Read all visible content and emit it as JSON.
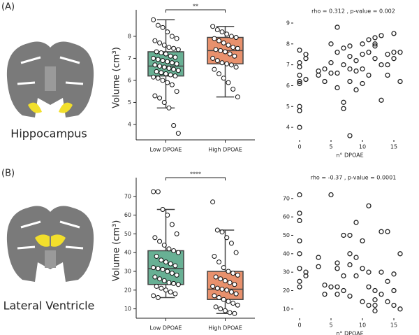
{
  "panel_labels": [
    "(A)",
    "(B)"
  ],
  "region_labels": [
    "Hippocampus",
    "Lateral Ventricle"
  ],
  "chart_data": [
    {
      "type": "box",
      "ylabel": "Volume (cm³)",
      "annotation": "**",
      "categories": [
        "Low DPOAE",
        "High DPOAE"
      ],
      "colors": [
        "#68b094",
        "#e8916d"
      ],
      "ylim": [
        3.3,
        8.95
      ],
      "yticks": [
        4,
        5,
        6,
        7,
        8
      ],
      "boxes": [
        {
          "whislo": 4.75,
          "q1": 6.2,
          "med": 6.65,
          "q3": 7.3,
          "whishi": 8.75,
          "points": [
            8.75,
            8.5,
            8.4,
            8.2,
            8.0,
            7.9,
            7.8,
            7.7,
            7.6,
            7.5,
            7.45,
            7.4,
            7.3,
            7.25,
            7.2,
            7.1,
            7.05,
            7.0,
            6.95,
            6.9,
            6.85,
            6.8,
            6.75,
            6.7,
            6.65,
            6.6,
            6.55,
            6.5,
            6.45,
            6.4,
            6.35,
            6.3,
            6.25,
            6.2,
            6.15,
            6.1,
            6.0,
            5.9,
            5.8,
            5.5,
            5.3,
            5.2,
            5.0,
            4.75,
            3.95,
            3.6
          ]
        },
        {
          "whislo": 5.25,
          "q1": 6.75,
          "med": 7.35,
          "q3": 7.95,
          "whishi": 8.45,
          "points": [
            8.45,
            8.3,
            8.2,
            8.1,
            8.0,
            7.95,
            7.9,
            7.8,
            7.7,
            7.6,
            7.5,
            7.45,
            7.4,
            7.35,
            7.3,
            7.2,
            7.1,
            7.0,
            6.9,
            6.8,
            6.75,
            6.7,
            6.6,
            6.5,
            6.3,
            6.1,
            5.9,
            5.6,
            5.25
          ]
        }
      ]
    },
    {
      "type": "scatter",
      "title": "rho = 0.312 , p-value = 0.002",
      "xlabel": "n° DPOAE",
      "xlim": [
        -1,
        17
      ],
      "xticks": [
        0,
        5,
        10,
        15
      ],
      "ylim": [
        3.4,
        9.1
      ],
      "yticks": [
        4,
        5,
        6,
        7,
        8,
        9
      ],
      "x": [
        0,
        0,
        0,
        0,
        0,
        0,
        0,
        0,
        0,
        1,
        1,
        1,
        3,
        3,
        4,
        4,
        5,
        5,
        5,
        6,
        6,
        6,
        6,
        7,
        7,
        7,
        7,
        8,
        8,
        8,
        8,
        8,
        9,
        9,
        9,
        10,
        10,
        10,
        10,
        11,
        11,
        11,
        12,
        12,
        12,
        12,
        13,
        13,
        13,
        14,
        14,
        14,
        15,
        15,
        15,
        16,
        16
      ],
      "y": [
        7.7,
        7.1,
        6.9,
        6.5,
        6.2,
        6.1,
        5.0,
        4.8,
        4.0,
        7.3,
        7.5,
        6.3,
        6.7,
        6.5,
        6.8,
        6.2,
        8.0,
        7.1,
        6.6,
        8.8,
        7.6,
        6.6,
        5.9,
        7.8,
        7.0,
        5.2,
        4.9,
        7.9,
        7.4,
        6.8,
        6.2,
        3.6,
        7.2,
        6.7,
        5.8,
        8.0,
        7.5,
        6.8,
        6.1,
        8.2,
        7.6,
        6.5,
        8.3,
        8.0,
        7.9,
        7.3,
        8.4,
        7.0,
        5.3,
        7.5,
        7.0,
        6.5,
        8.5,
        7.6,
        7.3,
        7.6,
        6.2
      ]
    },
    {
      "type": "box",
      "ylabel": "Volume (cm³)",
      "annotation": "****",
      "categories": [
        "Low DPOAE",
        "High DPOAE"
      ],
      "colors": [
        "#68b094",
        "#e8916d"
      ],
      "ylim": [
        5,
        77
      ],
      "yticks": [
        10,
        20,
        30,
        40,
        50,
        60,
        70
      ],
      "boxes": [
        {
          "whislo": 16,
          "q1": 23,
          "med": 31.5,
          "q3": 41,
          "whishi": 63,
          "points": [
            72.5,
            72.5,
            63,
            60,
            55,
            50,
            48,
            46,
            44,
            42,
            41,
            40,
            38,
            36,
            35,
            34,
            33,
            32,
            31.5,
            31,
            30,
            29,
            28,
            27,
            26,
            25,
            24,
            23.5,
            23,
            22,
            21,
            20,
            19,
            18,
            17,
            16
          ]
        },
        {
          "whislo": 7.5,
          "q1": 15,
          "med": 20.5,
          "q3": 30,
          "whishi": 52,
          "points": [
            67,
            52,
            51,
            48,
            45,
            40,
            38,
            35,
            32,
            30,
            29,
            28,
            27,
            26,
            25,
            24,
            23,
            22,
            21,
            20.5,
            20,
            19,
            18,
            17,
            16,
            15,
            14,
            13,
            12,
            11,
            10,
            9,
            8,
            7.5
          ]
        }
      ]
    },
    {
      "type": "scatter",
      "title": "rho = -0.37 , p-value = 0.0001",
      "xlabel": "n° DPOAE",
      "xlim": [
        -1,
        17
      ],
      "xticks": [
        0,
        5,
        10,
        15
      ],
      "ylim": [
        5,
        76
      ],
      "yticks": [
        10,
        20,
        30,
        40,
        50,
        60,
        70
      ],
      "x": [
        0,
        0,
        0,
        0,
        0,
        0,
        0,
        0,
        1,
        1,
        3,
        3,
        4,
        4,
        5,
        5,
        6,
        6,
        6,
        6,
        7,
        7,
        7,
        8,
        8,
        8,
        8,
        9,
        9,
        9,
        10,
        10,
        10,
        11,
        11,
        11,
        11,
        12,
        12,
        12,
        12,
        13,
        13,
        13,
        14,
        14,
        14,
        15,
        15,
        15,
        16,
        16
      ],
      "y": [
        72,
        62,
        58,
        47,
        40,
        32,
        25,
        22,
        30,
        28,
        38,
        33,
        23,
        18,
        72,
        22,
        35,
        32,
        22,
        18,
        50,
        28,
        20,
        50,
        40,
        34,
        17,
        57,
        38,
        28,
        47,
        32,
        14,
        66,
        30,
        22,
        12,
        20,
        15,
        12,
        9,
        52,
        30,
        18,
        52,
        25,
        14,
        29,
        20,
        12,
        40,
        10
      ]
    }
  ]
}
